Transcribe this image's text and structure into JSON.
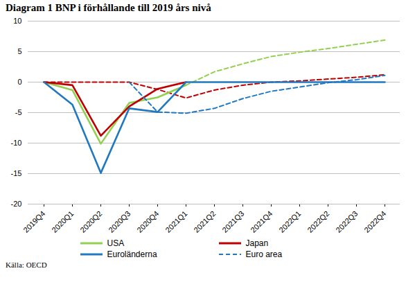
{
  "chart_data": {
    "type": "line",
    "title": "Diagram 1 BNP i förhållande till 2019 års nivå",
    "source": "Källa: OECD",
    "categories": [
      "2019Q4",
      "2020Q1",
      "2020Q2",
      "2020Q3",
      "2020Q4",
      "2021Q1",
      "2021Q2",
      "2021Q3",
      "2021Q4",
      "2022Q1",
      "2022Q2",
      "2022Q3",
      "2022Q4"
    ],
    "series": [
      {
        "name": null,
        "color": "#92d050",
        "line_style": "dashed",
        "values": [
          null,
          null,
          null,
          null,
          null,
          -0.5,
          1.7,
          3.0,
          4.2,
          4.9,
          5.5,
          6.2,
          6.9
        ]
      },
      {
        "name": null,
        "color": "#c00000",
        "line_style": "dashed",
        "values": [
          0,
          0,
          0,
          0,
          -1.2,
          -2.6,
          -1.3,
          -0.5,
          0,
          0.2,
          0.5,
          0.8,
          1.2
        ]
      },
      {
        "name": "USA",
        "color": "#92d050",
        "line_style": "solid",
        "values": [
          0,
          -1.3,
          -10.1,
          -3.4,
          -2.5,
          -0.5,
          null,
          null,
          null,
          null,
          null,
          null,
          null
        ]
      },
      {
        "name": "Japan",
        "color": "#c00000",
        "line_style": "solid",
        "values": [
          0,
          -0.5,
          -8.8,
          -4.0,
          -1.1,
          0,
          null,
          null,
          null,
          null,
          null,
          null,
          null
        ]
      },
      {
        "name": "Euroländerna",
        "color": "#1f78c1",
        "line_style": "solid",
        "values": [
          0,
          -3.7,
          -14.9,
          -4.3,
          -4.9,
          0,
          0,
          0,
          0,
          0,
          0,
          0,
          0
        ]
      },
      {
        "name": "Euro area",
        "color": "#1f78c1",
        "line_style": "dashed",
        "values": [
          null,
          null,
          null,
          0,
          -4.9,
          -5.1,
          -4.3,
          -2.7,
          -1.5,
          -0.8,
          -0.1,
          0.4,
          1.1
        ]
      }
    ],
    "ylim": [
      -20,
      10
    ],
    "yticks": [
      -20,
      -15,
      -10,
      -5,
      0,
      5,
      10
    ],
    "grid": true,
    "legend": "bottom"
  }
}
